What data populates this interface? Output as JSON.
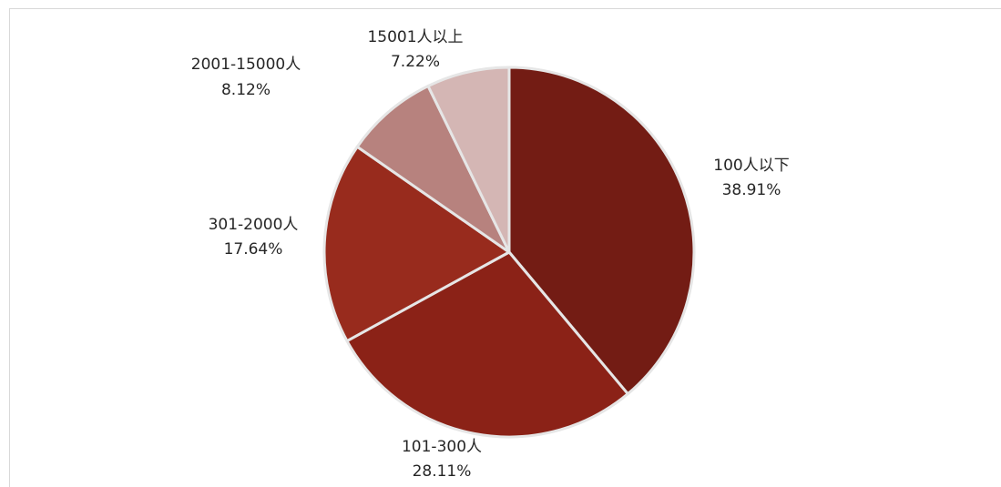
{
  "chart_data": {
    "type": "pie",
    "title": "",
    "start_angle_deg": 0,
    "direction": "clockwise",
    "slices": [
      {
        "name": "100人以下",
        "label": "100人以下",
        "value": 38.91,
        "value_label": "38.91%",
        "color": "#731c14"
      },
      {
        "name": "101-300人",
        "label": "101-300人",
        "value": 28.11,
        "value_label": "28.11%",
        "color": "#8b2217"
      },
      {
        "name": "301-2000人",
        "label": "301-2000人",
        "value": 17.64,
        "value_label": "17.64%",
        "color": "#982b1d"
      },
      {
        "name": "2001-15000人",
        "label": "2001-15000人",
        "value": 8.12,
        "value_label": "8.12%",
        "color": "#b7827e"
      },
      {
        "name": "15001人以上",
        "label": "15001人以上",
        "value": 7.22,
        "value_label": "7.22%",
        "color": "#d4b6b4"
      }
    ],
    "slice_border_color": "#e6e6e6",
    "legend": "none"
  }
}
